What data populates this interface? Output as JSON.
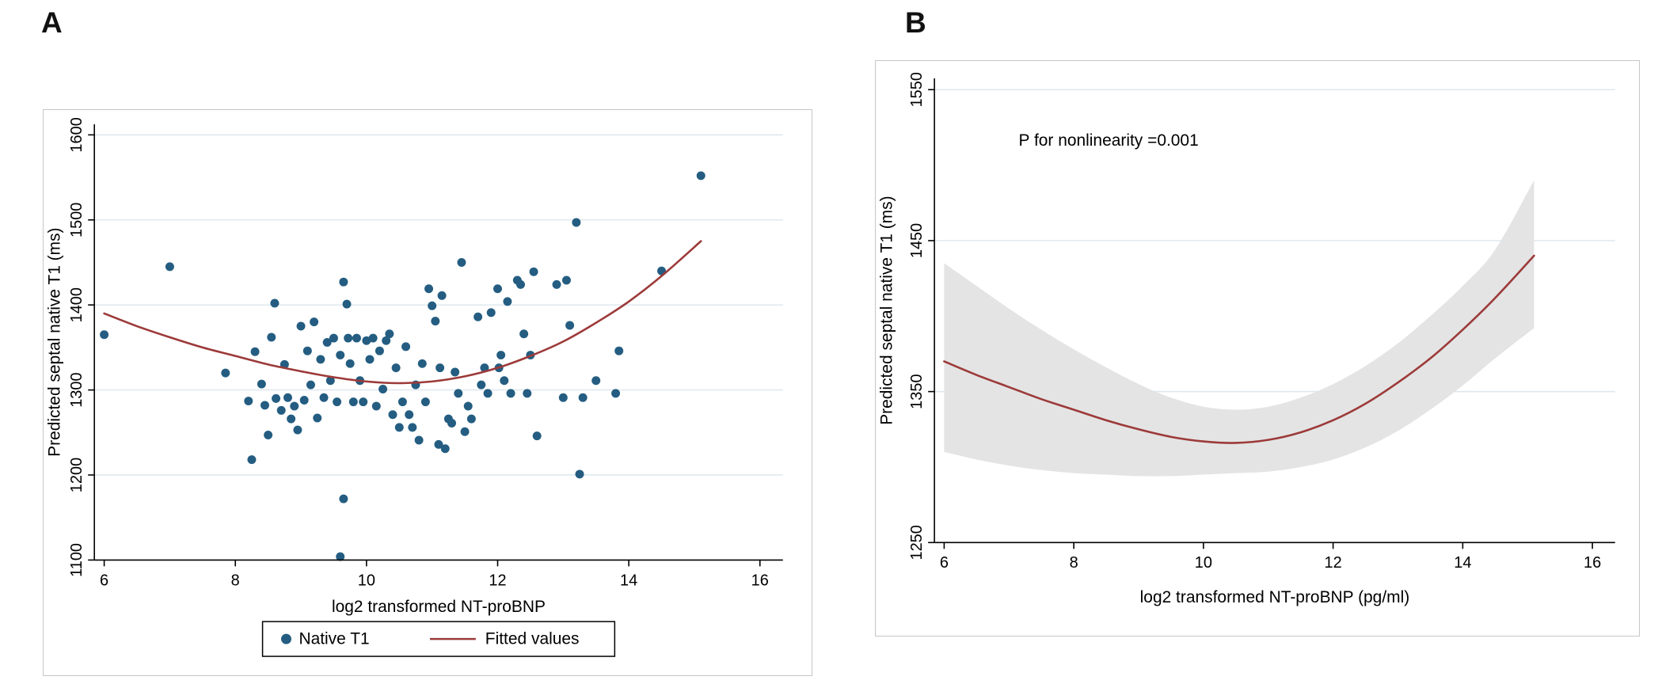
{
  "colors": {
    "scatter_point": "#245d81",
    "fit_line": "#9c3a39",
    "confidence_band": "#e4e4e4",
    "gridline": "#dbe7ee",
    "axis": "#000000",
    "legend_border": "#000000",
    "panel_border": "#c6c6c6",
    "background": "#ffffff"
  },
  "chart_data": [
    {
      "type": "scatter",
      "panel_label": "A",
      "xlabel": "log2 transformed NT-proBNP",
      "ylabel": "Predicted septal native T1 (ms)",
      "xlim": [
        6,
        16
      ],
      "ylim": [
        1100,
        1600
      ],
      "xticks": [
        6,
        8,
        10,
        12,
        14,
        16
      ],
      "yticks": [
        1100,
        1200,
        1300,
        1400,
        1500,
        1600
      ],
      "legend": [
        {
          "label": "Native T1",
          "marker": "dot"
        },
        {
          "label": "Fitted values",
          "marker": "line"
        }
      ],
      "points": [
        [
          6.0,
          1365
        ],
        [
          7.0,
          1445
        ],
        [
          7.85,
          1320
        ],
        [
          8.2,
          1287
        ],
        [
          8.25,
          1218
        ],
        [
          8.3,
          1345
        ],
        [
          8.4,
          1307
        ],
        [
          8.45,
          1282
        ],
        [
          8.5,
          1247
        ],
        [
          8.55,
          1362
        ],
        [
          8.6,
          1402
        ],
        [
          8.62,
          1290
        ],
        [
          8.7,
          1276
        ],
        [
          8.75,
          1330
        ],
        [
          8.8,
          1291
        ],
        [
          8.85,
          1266
        ],
        [
          8.9,
          1281
        ],
        [
          8.95,
          1253
        ],
        [
          9.0,
          1375
        ],
        [
          9.05,
          1288
        ],
        [
          9.1,
          1346
        ],
        [
          9.15,
          1306
        ],
        [
          9.2,
          1380
        ],
        [
          9.25,
          1267
        ],
        [
          9.3,
          1336
        ],
        [
          9.35,
          1291
        ],
        [
          9.4,
          1356
        ],
        [
          9.45,
          1311
        ],
        [
          9.5,
          1361
        ],
        [
          9.55,
          1286
        ],
        [
          9.6,
          1104
        ],
        [
          9.6,
          1341
        ],
        [
          9.65,
          1427
        ],
        [
          9.65,
          1172
        ],
        [
          9.7,
          1401
        ],
        [
          9.72,
          1361
        ],
        [
          9.75,
          1331
        ],
        [
          9.8,
          1286
        ],
        [
          9.85,
          1361
        ],
        [
          9.9,
          1311
        ],
        [
          9.95,
          1286
        ],
        [
          10.0,
          1358
        ],
        [
          10.05,
          1336
        ],
        [
          10.1,
          1361
        ],
        [
          10.15,
          1281
        ],
        [
          10.2,
          1346
        ],
        [
          10.25,
          1301
        ],
        [
          10.3,
          1358
        ],
        [
          10.35,
          1366
        ],
        [
          10.4,
          1271
        ],
        [
          10.45,
          1326
        ],
        [
          10.5,
          1256
        ],
        [
          10.55,
          1286
        ],
        [
          10.6,
          1351
        ],
        [
          10.65,
          1271
        ],
        [
          10.7,
          1256
        ],
        [
          10.75,
          1306
        ],
        [
          10.8,
          1241
        ],
        [
          10.85,
          1331
        ],
        [
          10.9,
          1286
        ],
        [
          10.95,
          1419
        ],
        [
          11.0,
          1399
        ],
        [
          11.05,
          1381
        ],
        [
          11.1,
          1236
        ],
        [
          11.12,
          1326
        ],
        [
          11.15,
          1411
        ],
        [
          11.2,
          1231
        ],
        [
          11.25,
          1266
        ],
        [
          11.3,
          1261
        ],
        [
          11.35,
          1321
        ],
        [
          11.4,
          1296
        ],
        [
          11.45,
          1450
        ],
        [
          11.5,
          1251
        ],
        [
          11.55,
          1281
        ],
        [
          11.6,
          1266
        ],
        [
          11.7,
          1386
        ],
        [
          11.75,
          1306
        ],
        [
          11.8,
          1326
        ],
        [
          11.85,
          1296
        ],
        [
          11.9,
          1391
        ],
        [
          12.0,
          1419
        ],
        [
          12.02,
          1326
        ],
        [
          12.05,
          1341
        ],
        [
          12.1,
          1311
        ],
        [
          12.15,
          1404
        ],
        [
          12.2,
          1296
        ],
        [
          12.3,
          1429
        ],
        [
          12.35,
          1424
        ],
        [
          12.4,
          1366
        ],
        [
          12.45,
          1296
        ],
        [
          12.5,
          1341
        ],
        [
          12.55,
          1439
        ],
        [
          12.6,
          1246
        ],
        [
          12.9,
          1424
        ],
        [
          13.0,
          1291
        ],
        [
          13.05,
          1429
        ],
        [
          13.1,
          1376
        ],
        [
          13.2,
          1497
        ],
        [
          13.25,
          1201
        ],
        [
          13.3,
          1291
        ],
        [
          13.5,
          1311
        ],
        [
          13.8,
          1296
        ],
        [
          13.85,
          1346
        ],
        [
          14.5,
          1440
        ],
        [
          15.1,
          1552
        ]
      ],
      "fit_line": {
        "x": [
          6,
          6.5,
          7,
          7.5,
          8,
          8.5,
          9,
          9.5,
          10,
          10.5,
          11,
          11.5,
          12,
          12.5,
          13,
          13.5,
          14,
          14.5,
          15.1
        ],
        "y": [
          1390,
          1375,
          1362,
          1350,
          1340,
          1330,
          1322,
          1315,
          1310,
          1308,
          1310,
          1316,
          1326,
          1340,
          1357,
          1379,
          1404,
          1434,
          1475
        ]
      }
    },
    {
      "type": "line",
      "panel_label": "B",
      "xlabel": "log2 transformed NT-proBNP (pg/ml)",
      "ylabel": "Predicted septal native T1 (ms)",
      "annotation": {
        "text": "P for nonlinearity =0.001",
        "x": 7.15,
        "y": 1513
      },
      "xlim": [
        6,
        16
      ],
      "ylim": [
        1250,
        1550
      ],
      "xticks": [
        6,
        8,
        10,
        12,
        14,
        16
      ],
      "yticks": [
        1250,
        1350,
        1450,
        1550
      ],
      "line": {
        "x": [
          6,
          6.5,
          7,
          7.5,
          8,
          8.5,
          9,
          9.5,
          10,
          10.5,
          11,
          11.5,
          12,
          12.5,
          13,
          13.5,
          14,
          14.5,
          15.1
        ],
        "y": [
          1370,
          1361,
          1353,
          1345,
          1338,
          1331,
          1325,
          1320,
          1317,
          1316,
          1318,
          1323,
          1331,
          1342,
          1356,
          1372,
          1391,
          1412,
          1440
        ]
      },
      "band": {
        "x": [
          6,
          6.5,
          7,
          7.5,
          8,
          8.5,
          9,
          9.5,
          10,
          10.5,
          11,
          11.5,
          12,
          12.5,
          13,
          13.5,
          14,
          14.5,
          15.1
        ],
        "upper": [
          1435,
          1420,
          1405,
          1391,
          1378,
          1366,
          1355,
          1346,
          1340,
          1338,
          1340,
          1346,
          1355,
          1367,
          1382,
          1400,
          1420,
          1444,
          1490
        ],
        "lower": [
          1310,
          1305,
          1301,
          1298,
          1296,
          1295,
          1294,
          1294,
          1295,
          1296,
          1297,
          1300,
          1305,
          1313,
          1324,
          1338,
          1354,
          1372,
          1392
        ]
      }
    }
  ]
}
